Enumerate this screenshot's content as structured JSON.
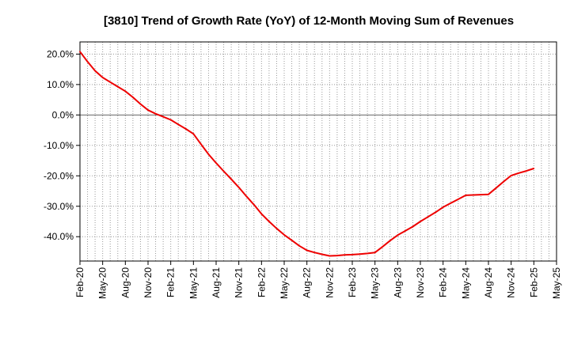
{
  "chart_data": {
    "type": "line",
    "title": "[3810]  Trend of Growth Rate (YoY) of 12-Month Moving Sum of Revenues",
    "xlabel": "",
    "ylabel": "",
    "x": [
      "Feb-20",
      "Mar-20",
      "Apr-20",
      "May-20",
      "Jun-20",
      "Jul-20",
      "Aug-20",
      "Sep-20",
      "Oct-20",
      "Nov-20",
      "Dec-20",
      "Jan-21",
      "Feb-21",
      "Mar-21",
      "Apr-21",
      "May-21",
      "Jun-21",
      "Jul-21",
      "Aug-21",
      "Sep-21",
      "Oct-21",
      "Nov-21",
      "Dec-21",
      "Jan-22",
      "Feb-22",
      "Mar-22",
      "Apr-22",
      "May-22",
      "Jun-22",
      "Jul-22",
      "Aug-22",
      "Sep-22",
      "Oct-22",
      "Nov-22",
      "Dec-22",
      "Jan-23",
      "Feb-23",
      "Mar-23",
      "Apr-23",
      "May-23",
      "Jun-23",
      "Jul-23",
      "Aug-23",
      "Sep-23",
      "Oct-23",
      "Nov-23",
      "Dec-23",
      "Jan-24",
      "Feb-24",
      "Mar-24",
      "Apr-24",
      "May-24",
      "Jun-24",
      "Jul-24",
      "Aug-24",
      "Sep-24",
      "Oct-24",
      "Nov-24",
      "Dec-24",
      "Jan-25",
      "Feb-25"
    ],
    "x_tick_labels": [
      "Feb-20",
      "May-20",
      "Aug-20",
      "Nov-20",
      "Feb-21",
      "May-21",
      "Aug-21",
      "Nov-21",
      "Feb-22",
      "May-22",
      "Aug-22",
      "Nov-22",
      "Feb-23",
      "May-23",
      "Aug-23",
      "Nov-23",
      "Feb-24",
      "May-24",
      "Aug-24",
      "Nov-24",
      "Feb-25",
      "May-25"
    ],
    "x_range": [
      "Feb-20",
      "May-25"
    ],
    "series": [
      {
        "name": "",
        "color": "#ee0000",
        "values": [
          20.8,
          17.5,
          14.5,
          12.3,
          10.8,
          9.3,
          7.8,
          5.8,
          3.6,
          1.6,
          0.4,
          -0.6,
          -1.6,
          -3.1,
          -4.6,
          -6.2,
          -9.6,
          -12.9,
          -15.8,
          -18.5,
          -21.1,
          -23.8,
          -26.7,
          -29.5,
          -32.5,
          -35.0,
          -37.3,
          -39.4,
          -41.2,
          -43.0,
          -44.5,
          -45.2,
          -45.8,
          -46.3,
          -46.2,
          -46.0,
          -45.9,
          -45.7,
          -45.5,
          -45.2,
          -43.3,
          -41.3,
          -39.5,
          -38.1,
          -36.7,
          -35.0,
          -33.5,
          -32.0,
          -30.3,
          -29.0,
          -27.7,
          -26.4,
          -26.3,
          -26.2,
          -26.1,
          -24.0,
          -21.9,
          -19.9,
          -19.1,
          -18.4,
          -17.6
        ]
      }
    ],
    "y_ticks": [
      20,
      10,
      0,
      -10,
      -20,
      -30,
      -40
    ],
    "y_tick_labels": [
      "20.0%",
      "10.0%",
      "0.0%",
      "-10.0%",
      "-20.0%",
      "-30.0%",
      "-40.0%"
    ],
    "ylim": [
      -48,
      24
    ],
    "grid": true,
    "grid_style": "dotted",
    "zero_line": true,
    "legend": "none"
  }
}
